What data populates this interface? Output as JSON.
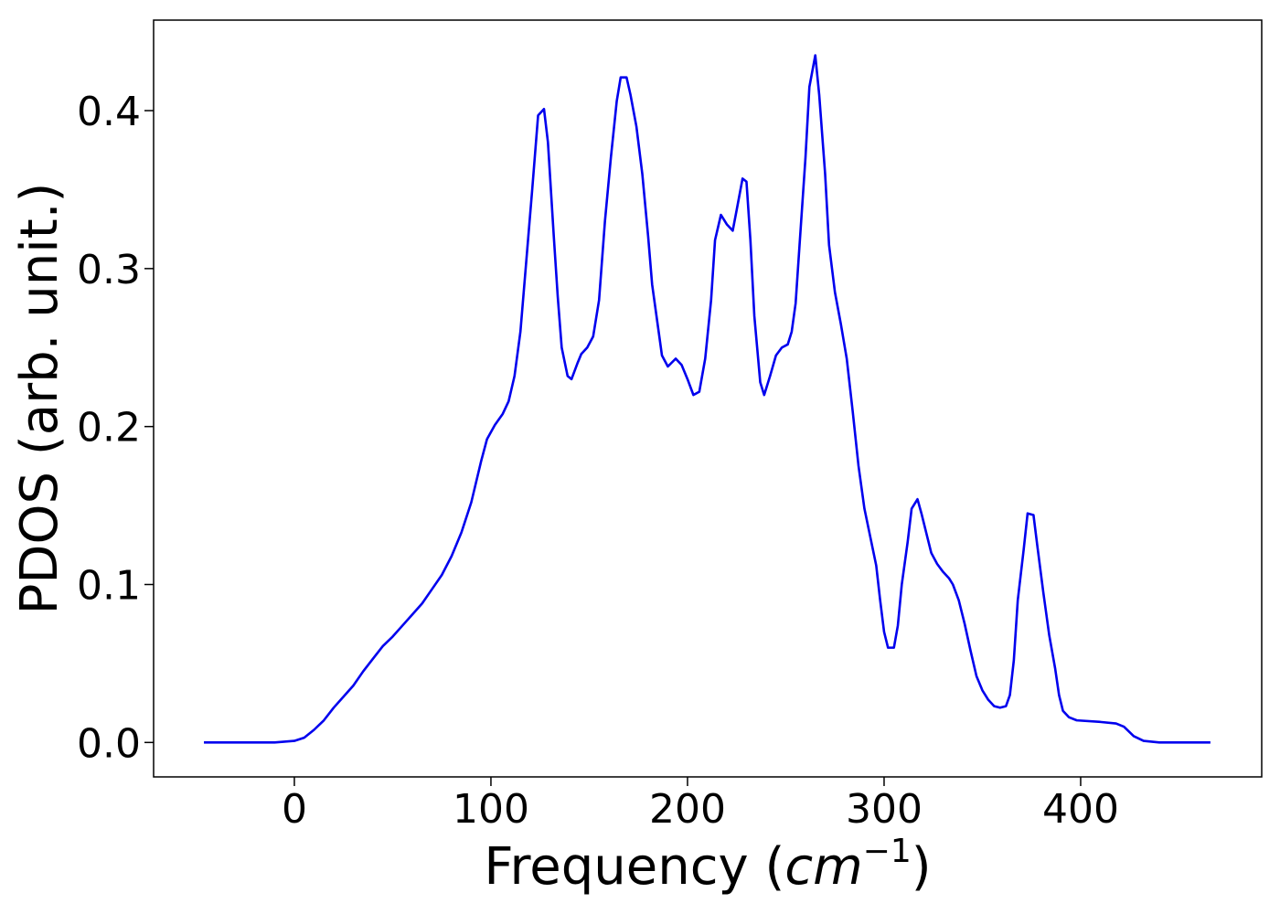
{
  "chart_data": {
    "type": "line",
    "xlabel": [
      "Frequency (",
      "cm",
      "−1",
      ")"
    ],
    "ylabel": "PDOS (arb. unit.)",
    "xlim": [
      -71.6,
      492.1
    ],
    "ylim": [
      -0.0218,
      0.4573
    ],
    "xticks": [
      0,
      100,
      200,
      300,
      400
    ],
    "yticks": [
      {
        "value": 0,
        "label": "0.0"
      },
      0.1,
      0.2,
      0.3,
      0.4
    ],
    "grid": false,
    "series": [
      {
        "color": "#0000ee",
        "x": [
          -46,
          -10,
          0,
          5,
          10,
          15,
          20,
          25,
          30,
          35,
          40,
          45,
          50,
          55,
          60,
          65,
          70,
          75,
          80,
          85,
          90,
          95,
          98,
          102,
          106,
          109,
          112,
          115,
          118,
          121,
          124,
          127,
          129,
          132,
          134,
          136,
          139,
          141,
          144,
          146,
          149,
          152,
          155,
          158,
          161,
          164,
          166,
          169,
          171,
          174,
          177,
          180,
          182,
          185,
          187,
          190,
          194,
          197,
          200,
          203,
          206,
          209,
          212,
          214,
          217,
          220,
          223,
          225,
          228,
          230,
          232,
          234,
          237,
          239,
          242,
          245,
          248,
          251,
          253,
          255,
          257,
          260,
          262,
          265,
          267,
          270,
          272,
          275,
          278,
          281,
          284,
          287,
          290,
          293,
          296,
          298,
          300,
          302,
          305,
          307,
          309,
          312,
          314,
          317,
          319,
          322,
          324,
          327,
          330,
          333,
          335,
          338,
          341,
          344,
          347,
          350,
          353,
          356,
          359,
          362,
          364,
          366,
          368,
          371,
          373,
          376,
          378,
          381,
          384,
          387,
          389,
          391,
          394,
          398,
          410,
          418,
          422,
          427,
          432,
          440,
          466
        ],
        "values": [
          0,
          0,
          0.001,
          0.003,
          0.008,
          0.014,
          0.022,
          0.029,
          0.036,
          0.045,
          0.053,
          0.061,
          0.067,
          0.074,
          0.081,
          0.088,
          0.097,
          0.106,
          0.118,
          0.133,
          0.152,
          0.178,
          0.192,
          0.201,
          0.208,
          0.216,
          0.232,
          0.26,
          0.305,
          0.35,
          0.397,
          0.401,
          0.38,
          0.32,
          0.282,
          0.25,
          0.232,
          0.23,
          0.24,
          0.246,
          0.25,
          0.257,
          0.28,
          0.33,
          0.37,
          0.406,
          0.421,
          0.421,
          0.41,
          0.39,
          0.36,
          0.32,
          0.29,
          0.263,
          0.245,
          0.238,
          0.243,
          0.239,
          0.23,
          0.22,
          0.222,
          0.243,
          0.28,
          0.318,
          0.334,
          0.328,
          0.324,
          0.337,
          0.357,
          0.355,
          0.318,
          0.27,
          0.228,
          0.22,
          0.232,
          0.245,
          0.25,
          0.252,
          0.26,
          0.278,
          0.315,
          0.37,
          0.415,
          0.435,
          0.41,
          0.36,
          0.315,
          0.285,
          0.265,
          0.243,
          0.21,
          0.175,
          0.148,
          0.13,
          0.112,
          0.09,
          0.07,
          0.06,
          0.06,
          0.074,
          0.1,
          0.127,
          0.148,
          0.154,
          0.145,
          0.13,
          0.12,
          0.113,
          0.108,
          0.104,
          0.1,
          0.09,
          0.075,
          0.058,
          0.042,
          0.033,
          0.027,
          0.023,
          0.022,
          0.023,
          0.03,
          0.052,
          0.09,
          0.122,
          0.145,
          0.144,
          0.124,
          0.095,
          0.068,
          0.047,
          0.03,
          0.02,
          0.016,
          0.014,
          0.013,
          0.012,
          0.01,
          0.004,
          0.001,
          0,
          0
        ]
      }
    ]
  }
}
